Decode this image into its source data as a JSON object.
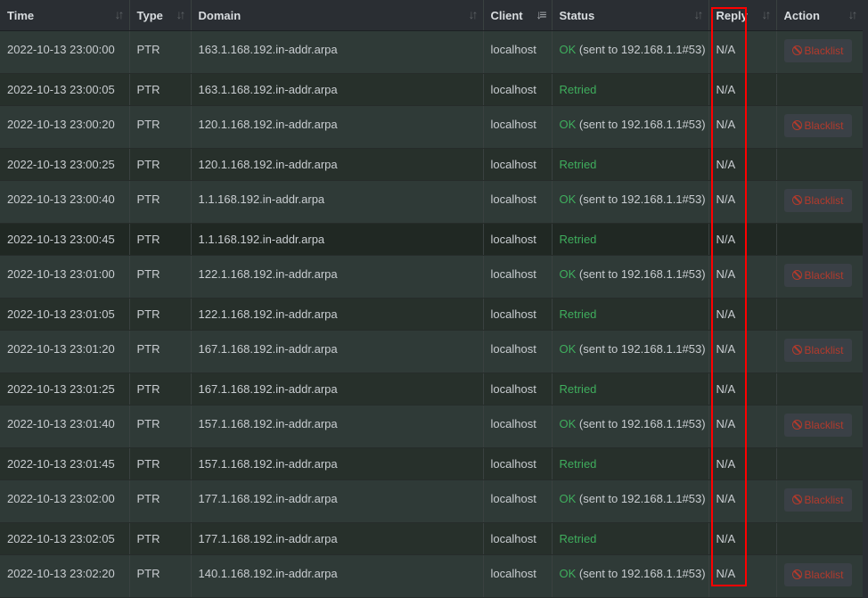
{
  "columns": [
    {
      "label": "Time",
      "sort": "sort-icon"
    },
    {
      "label": "Type",
      "sort": "sort-icon"
    },
    {
      "label": "Domain",
      "sort": "sort-icon"
    },
    {
      "label": "Client",
      "sort": "sort-desc-icon"
    },
    {
      "label": "Status",
      "sort": "sort-icon"
    },
    {
      "label": "Reply",
      "sort": "sort-icon"
    },
    {
      "label": "Action",
      "sort": "sort-icon"
    }
  ],
  "blacklist_label": "Blacklist",
  "highlight_color": "#ff0000",
  "rows": [
    {
      "time": "2022-10-13 23:00:00",
      "type": "PTR",
      "domain": "163.1.168.192.in-addr.arpa",
      "client": "localhost",
      "status_ok": "OK",
      "status_detail": " (sent to 192.168.1.1#53)",
      "reply": "N/A"
    },
    {
      "time": "2022-10-13 23:00:05",
      "type": "PTR",
      "domain": "163.1.168.192.in-addr.arpa",
      "client": "localhost",
      "status_retried": "Retried",
      "reply": "N/A"
    },
    {
      "time": "2022-10-13 23:00:20",
      "type": "PTR",
      "domain": "120.1.168.192.in-addr.arpa",
      "client": "localhost",
      "status_ok": "OK",
      "status_detail": " (sent to 192.168.1.1#53)",
      "reply": "N/A"
    },
    {
      "time": "2022-10-13 23:00:25",
      "type": "PTR",
      "domain": "120.1.168.192.in-addr.arpa",
      "client": "localhost",
      "status_retried": "Retried",
      "reply": "N/A"
    },
    {
      "time": "2022-10-13 23:00:40",
      "type": "PTR",
      "domain": "1.1.168.192.in-addr.arpa",
      "client": "localhost",
      "status_ok": "OK",
      "status_detail": " (sent to 192.168.1.1#53)",
      "reply": "N/A"
    },
    {
      "time": "2022-10-13 23:00:45",
      "type": "PTR",
      "domain": "1.1.168.192.in-addr.arpa",
      "client": "localhost",
      "status_retried": "Retried",
      "reply": "N/A"
    },
    {
      "time": "2022-10-13 23:01:00",
      "type": "PTR",
      "domain": "122.1.168.192.in-addr.arpa",
      "client": "localhost",
      "status_ok": "OK",
      "status_detail": " (sent to 192.168.1.1#53)",
      "reply": "N/A"
    },
    {
      "time": "2022-10-13 23:01:05",
      "type": "PTR",
      "domain": "122.1.168.192.in-addr.arpa",
      "client": "localhost",
      "status_retried": "Retried",
      "reply": "N/A"
    },
    {
      "time": "2022-10-13 23:01:20",
      "type": "PTR",
      "domain": "167.1.168.192.in-addr.arpa",
      "client": "localhost",
      "status_ok": "OK",
      "status_detail": " (sent to 192.168.1.1#53)",
      "reply": "N/A"
    },
    {
      "time": "2022-10-13 23:01:25",
      "type": "PTR",
      "domain": "167.1.168.192.in-addr.arpa",
      "client": "localhost",
      "status_retried": "Retried",
      "reply": "N/A"
    },
    {
      "time": "2022-10-13 23:01:40",
      "type": "PTR",
      "domain": "157.1.168.192.in-addr.arpa",
      "client": "localhost",
      "status_ok": "OK",
      "status_detail": " (sent to 192.168.1.1#53)",
      "reply": "N/A"
    },
    {
      "time": "2022-10-13 23:01:45",
      "type": "PTR",
      "domain": "157.1.168.192.in-addr.arpa",
      "client": "localhost",
      "status_retried": "Retried",
      "reply": "N/A"
    },
    {
      "time": "2022-10-13 23:02:00",
      "type": "PTR",
      "domain": "177.1.168.192.in-addr.arpa",
      "client": "localhost",
      "status_ok": "OK",
      "status_detail": " (sent to 192.168.1.1#53)",
      "reply": "N/A"
    },
    {
      "time": "2022-10-13 23:02:05",
      "type": "PTR",
      "domain": "177.1.168.192.in-addr.arpa",
      "client": "localhost",
      "status_retried": "Retried",
      "reply": "N/A"
    },
    {
      "time": "2022-10-13 23:02:20",
      "type": "PTR",
      "domain": "140.1.168.192.in-addr.arpa",
      "client": "localhost",
      "status_ok": "OK",
      "status_detail": " (sent to 192.168.1.1#53)",
      "reply": "N/A"
    }
  ]
}
